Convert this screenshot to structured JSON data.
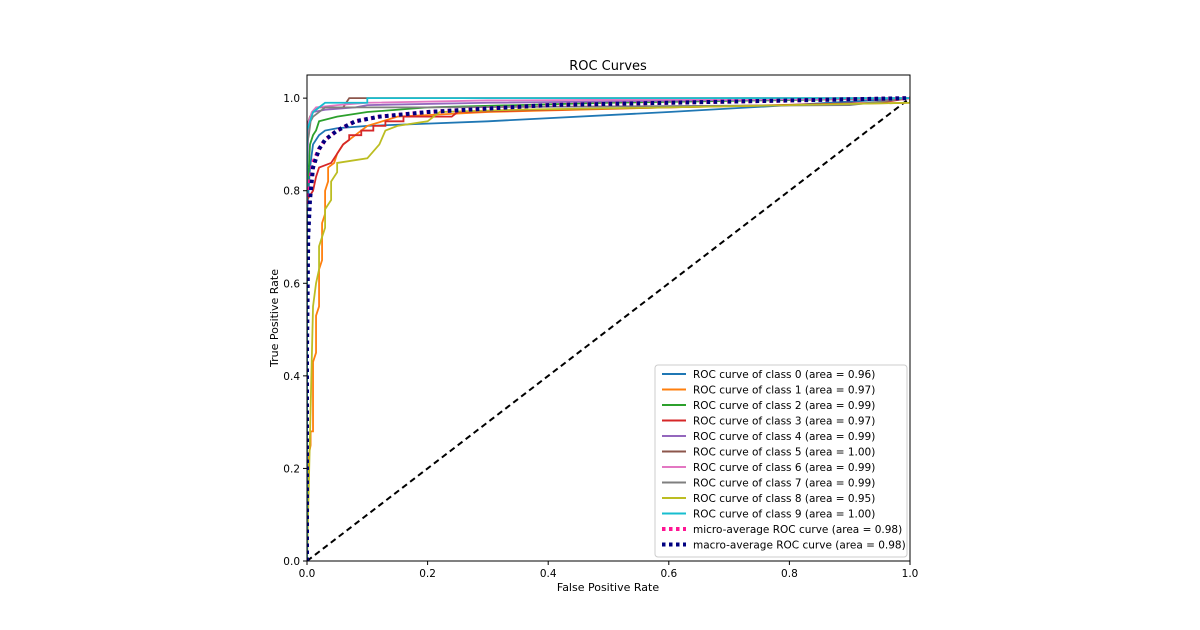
{
  "chart_data": {
    "type": "line",
    "title": "ROC Curves",
    "xlabel": "False Positive Rate",
    "ylabel": "True Positive Rate",
    "xlim": [
      0,
      1
    ],
    "ylim": [
      0,
      1.05
    ],
    "xticks": [
      0.0,
      0.2,
      0.4,
      0.6,
      0.8,
      1.0
    ],
    "xtick_labels": [
      "0.0",
      "0.2",
      "0.4",
      "0.6",
      "0.8",
      "1.0"
    ],
    "yticks": [
      0.0,
      0.2,
      0.4,
      0.6,
      0.8,
      1.0
    ],
    "ytick_labels": [
      "0.0",
      "0.2",
      "0.4",
      "0.6",
      "0.8",
      "1.0"
    ],
    "grid": false,
    "legend_position": "lower-right",
    "series": [
      {
        "name": "ROC curve of class 0 (area = 0.96)",
        "color": "#1f77b4",
        "style": "solid",
        "points": [
          [
            0,
            0
          ],
          [
            0,
            0.75
          ],
          [
            0.005,
            0.85
          ],
          [
            0.01,
            0.9
          ],
          [
            0.02,
            0.92
          ],
          [
            0.03,
            0.93
          ],
          [
            0.05,
            0.935
          ],
          [
            0.1,
            0.94
          ],
          [
            0.2,
            0.945
          ],
          [
            0.3,
            0.95
          ],
          [
            0.6,
            0.97
          ],
          [
            1,
            1
          ]
        ]
      },
      {
        "name": "ROC curve of class 1 (area = 0.97)",
        "color": "#ff7f0e",
        "style": "solid",
        "points": [
          [
            0,
            0
          ],
          [
            0.003,
            0.23
          ],
          [
            0.006,
            0.25
          ],
          [
            0.006,
            0.28
          ],
          [
            0.01,
            0.28
          ],
          [
            0.01,
            0.43
          ],
          [
            0.015,
            0.45
          ],
          [
            0.015,
            0.53
          ],
          [
            0.02,
            0.55
          ],
          [
            0.02,
            0.63
          ],
          [
            0.025,
            0.65
          ],
          [
            0.025,
            0.73
          ],
          [
            0.03,
            0.75
          ],
          [
            0.03,
            0.8
          ],
          [
            0.035,
            0.82
          ],
          [
            0.035,
            0.85
          ],
          [
            0.045,
            0.86
          ],
          [
            0.05,
            0.88
          ],
          [
            0.06,
            0.9
          ],
          [
            0.08,
            0.92
          ],
          [
            0.1,
            0.94
          ],
          [
            0.15,
            0.96
          ],
          [
            0.3,
            0.97
          ],
          [
            0.6,
            0.98
          ],
          [
            1,
            0.99
          ],
          [
            1,
            1
          ]
        ]
      },
      {
        "name": "ROC curve of class 2 (area = 0.99)",
        "color": "#2ca02c",
        "style": "solid",
        "points": [
          [
            0,
            0
          ],
          [
            0,
            0.8
          ],
          [
            0.003,
            0.85
          ],
          [
            0.005,
            0.9
          ],
          [
            0.01,
            0.92
          ],
          [
            0.015,
            0.93
          ],
          [
            0.02,
            0.95
          ],
          [
            0.05,
            0.96
          ],
          [
            0.1,
            0.97
          ],
          [
            0.2,
            0.98
          ],
          [
            0.5,
            0.99
          ],
          [
            1,
            1
          ]
        ]
      },
      {
        "name": "ROC curve of class 3 (area = 0.97)",
        "color": "#d62728",
        "style": "solid",
        "points": [
          [
            0,
            0
          ],
          [
            0,
            0.78
          ],
          [
            0.01,
            0.8
          ],
          [
            0.015,
            0.83
          ],
          [
            0.02,
            0.85
          ],
          [
            0.04,
            0.86
          ],
          [
            0.05,
            0.88
          ],
          [
            0.06,
            0.9
          ],
          [
            0.07,
            0.91
          ],
          [
            0.07,
            0.92
          ],
          [
            0.09,
            0.92
          ],
          [
            0.09,
            0.93
          ],
          [
            0.11,
            0.93
          ],
          [
            0.11,
            0.94
          ],
          [
            0.13,
            0.94
          ],
          [
            0.13,
            0.95
          ],
          [
            0.16,
            0.95
          ],
          [
            0.16,
            0.96
          ],
          [
            0.24,
            0.96
          ],
          [
            0.25,
            0.97
          ],
          [
            0.4,
            0.975
          ],
          [
            0.6,
            0.98
          ],
          [
            0.95,
            0.99
          ],
          [
            1,
            1
          ]
        ]
      },
      {
        "name": "ROC curve of class 4 (area = 0.99)",
        "color": "#9467bd",
        "style": "solid",
        "points": [
          [
            0,
            0
          ],
          [
            0,
            0.85
          ],
          [
            0.002,
            0.92
          ],
          [
            0.005,
            0.95
          ],
          [
            0.01,
            0.97
          ],
          [
            0.03,
            0.975
          ],
          [
            0.08,
            0.98
          ],
          [
            0.1,
            0.985
          ],
          [
            0.3,
            0.99
          ],
          [
            1,
            1
          ]
        ]
      },
      {
        "name": "ROC curve of class 5 (area = 1.00)",
        "color": "#8c564b",
        "style": "solid",
        "points": [
          [
            0,
            0
          ],
          [
            0,
            0.94
          ],
          [
            0.005,
            0.96
          ],
          [
            0.01,
            0.97
          ],
          [
            0.02,
            0.98
          ],
          [
            0.06,
            0.98
          ],
          [
            0.07,
            1.0
          ],
          [
            1,
            1
          ]
        ]
      },
      {
        "name": "ROC curve of class 6 (area = 0.99)",
        "color": "#e377c2",
        "style": "solid",
        "points": [
          [
            0,
            0
          ],
          [
            0,
            0.9
          ],
          [
            0.003,
            0.95
          ],
          [
            0.008,
            0.97
          ],
          [
            0.015,
            0.98
          ],
          [
            0.05,
            0.985
          ],
          [
            0.1,
            0.99
          ],
          [
            0.3,
            0.995
          ],
          [
            1,
            1
          ]
        ]
      },
      {
        "name": "ROC curve of class 7 (area = 0.99)",
        "color": "#7f7f7f",
        "style": "solid",
        "points": [
          [
            0,
            0
          ],
          [
            0,
            0.9
          ],
          [
            0.003,
            0.92
          ],
          [
            0.006,
            0.95
          ],
          [
            0.01,
            0.96
          ],
          [
            0.02,
            0.97
          ],
          [
            0.03,
            0.98
          ],
          [
            0.2,
            0.98
          ],
          [
            0.9,
            0.985
          ],
          [
            1,
            1
          ]
        ]
      },
      {
        "name": "ROC curve of class 8 (area = 0.95)",
        "color": "#bcbd22",
        "style": "solid",
        "points": [
          [
            0,
            0
          ],
          [
            0.01,
            0.55
          ],
          [
            0.015,
            0.6
          ],
          [
            0.02,
            0.63
          ],
          [
            0.02,
            0.68
          ],
          [
            0.025,
            0.7
          ],
          [
            0.03,
            0.72
          ],
          [
            0.03,
            0.76
          ],
          [
            0.04,
            0.78
          ],
          [
            0.04,
            0.82
          ],
          [
            0.05,
            0.84
          ],
          [
            0.05,
            0.86
          ],
          [
            0.1,
            0.87
          ],
          [
            0.12,
            0.9
          ],
          [
            0.13,
            0.93
          ],
          [
            0.15,
            0.94
          ],
          [
            0.2,
            0.95
          ],
          [
            0.22,
            0.97
          ],
          [
            0.35,
            0.975
          ],
          [
            0.6,
            0.98
          ],
          [
            1,
            0.99
          ],
          [
            1,
            1
          ]
        ]
      },
      {
        "name": "ROC curve of class 9 (area = 1.00)",
        "color": "#17becf",
        "style": "solid",
        "points": [
          [
            0,
            0
          ],
          [
            0,
            0.93
          ],
          [
            0.005,
            0.95
          ],
          [
            0.01,
            0.97
          ],
          [
            0.02,
            0.98
          ],
          [
            0.03,
            0.99
          ],
          [
            0.1,
            0.99
          ],
          [
            0.1,
            1.0
          ],
          [
            1,
            1
          ]
        ]
      },
      {
        "name": "micro-average ROC curve (area = 0.98)",
        "color": "#ff1493",
        "style": "dotted",
        "points": [
          [
            0,
            0
          ],
          [
            0,
            0.6
          ],
          [
            0.002,
            0.75
          ],
          [
            0.005,
            0.82
          ],
          [
            0.01,
            0.86
          ],
          [
            0.02,
            0.89
          ],
          [
            0.03,
            0.91
          ],
          [
            0.05,
            0.93
          ],
          [
            0.08,
            0.95
          ],
          [
            0.12,
            0.96
          ],
          [
            0.2,
            0.97
          ],
          [
            0.4,
            0.985
          ],
          [
            0.6,
            0.99
          ],
          [
            0.8,
            0.995
          ],
          [
            1,
            1
          ]
        ]
      },
      {
        "name": "macro-average ROC curve (area = 0.98)",
        "color": "#000080",
        "style": "dotted",
        "points": [
          [
            0,
            0
          ],
          [
            0,
            0.45
          ],
          [
            0.002,
            0.7
          ],
          [
            0.005,
            0.78
          ],
          [
            0.01,
            0.85
          ],
          [
            0.02,
            0.89
          ],
          [
            0.03,
            0.91
          ],
          [
            0.05,
            0.93
          ],
          [
            0.08,
            0.95
          ],
          [
            0.12,
            0.96
          ],
          [
            0.2,
            0.97
          ],
          [
            0.4,
            0.985
          ],
          [
            0.6,
            0.99
          ],
          [
            0.8,
            0.995
          ],
          [
            1,
            1
          ]
        ]
      }
    ],
    "reference_line": {
      "points": [
        [
          0,
          0
        ],
        [
          1,
          1
        ]
      ],
      "color": "#000000",
      "style": "dashed"
    }
  }
}
